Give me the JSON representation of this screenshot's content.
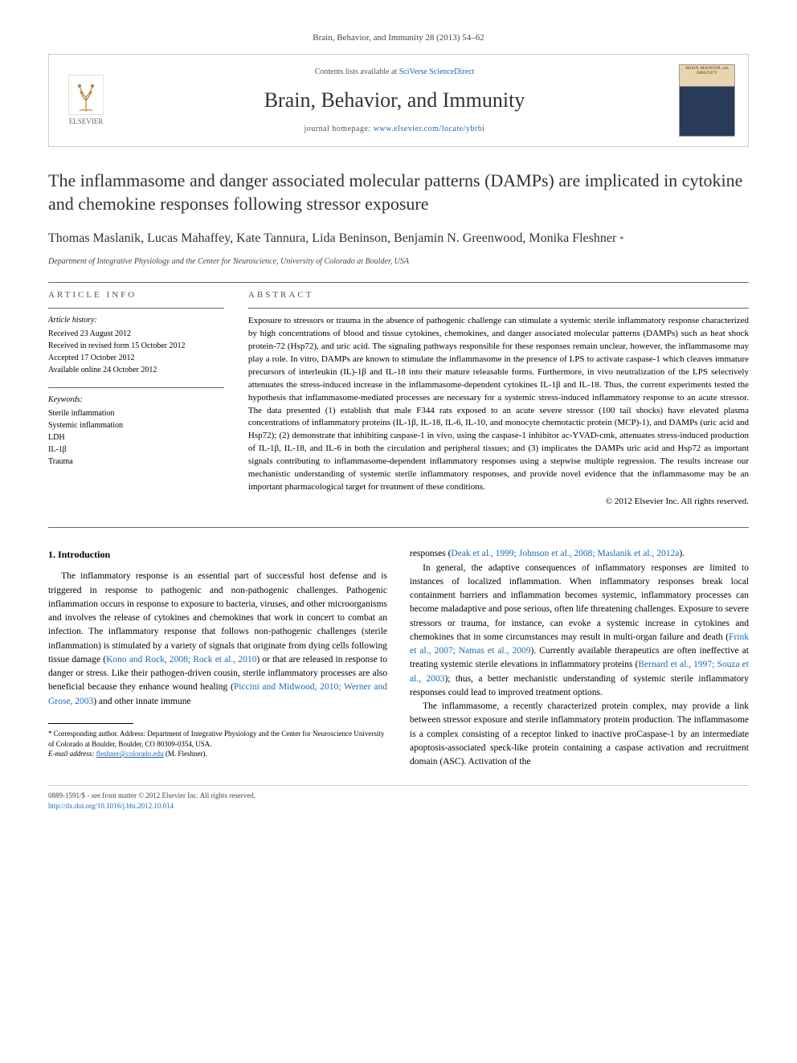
{
  "journal_ref": "Brain, Behavior, and Immunity 28 (2013) 54–62",
  "header": {
    "publisher": "ELSEVIER",
    "contents_prefix": "Contents lists available at ",
    "contents_link": "SciVerse ScienceDirect",
    "journal_name": "Brain, Behavior, and Immunity",
    "homepage_prefix": "journal homepage: ",
    "homepage_url": "www.elsevier.com/locate/ybrbi",
    "cover_title": "BRAIN, BEHAVIOR, and IMMUNITY"
  },
  "article": {
    "title": "The inflammasome and danger associated molecular patterns (DAMPs) are implicated in cytokine and chemokine responses following stressor exposure",
    "authors": "Thomas Maslanik, Lucas Mahaffey, Kate Tannura, Lida Beninson, Benjamin N. Greenwood, Monika Fleshner",
    "corr_marker": "*",
    "affiliation": "Department of Integrative Physiology and the Center for Neuroscience, University of Colorado at Boulder, USA"
  },
  "info": {
    "heading": "ARTICLE INFO",
    "history_title": "Article history:",
    "history": {
      "received": "Received 23 August 2012",
      "revised": "Received in revised form 15 October 2012",
      "accepted": "Accepted 17 October 2012",
      "online": "Available online 24 October 2012"
    },
    "keywords_title": "Keywords:",
    "keywords": [
      "Sterile inflammation",
      "Systemic inflammation",
      "LDH",
      "IL-1β",
      "Trauma"
    ]
  },
  "abstract": {
    "heading": "ABSTRACT",
    "text": "Exposure to stressors or trauma in the absence of pathogenic challenge can stimulate a systemic sterile inflammatory response characterized by high concentrations of blood and tissue cytokines, chemokines, and danger associated molecular patterns (DAMPs) such as heat shock protein-72 (Hsp72), and uric acid. The signaling pathways responsible for these responses remain unclear, however, the inflammasome may play a role. In vitro, DAMPs are known to stimulate the inflammasome in the presence of LPS to activate caspase-1 which cleaves immature precursors of interleukin (IL)-1β and IL-18 into their mature releasable forms. Furthermore, in vivo neutralization of the LPS selectively attenuates the stress-induced increase in the inflammasome-dependent cytokines IL-1β and IL-18. Thus, the current experiments tested the hypothesis that inflammasome-mediated processes are necessary for a systemic stress-induced inflammatory response to an acute stressor. The data presented (1) establish that male F344 rats exposed to an acute severe stressor (100 tail shocks) have elevated plasma concentrations of inflammatory proteins (IL-1β, IL-18, IL-6, IL-10, and monocyte chemotactic protein (MCP)-1), and DAMPs (uric acid and Hsp72); (2) demonstrate that inhibiting caspase-1 in vivo, using the caspase-1 inhibitor ac-YVAD-cmk, attenuates stress-induced production of IL-1β, IL-18, and IL-6 in both the circulation and peripheral tissues; and (3) implicates the DAMPs uric acid and Hsp72 as important signals contributing to inflammasome-dependent inflammatory responses using a stepwise multiple regression. The results increase our mechanistic understanding of systemic sterile inflammatory responses, and provide novel evidence that the inflammasome may be an important pharmacological target for treatment of these conditions.",
    "copyright": "© 2012 Elsevier Inc. All rights reserved."
  },
  "body": {
    "section_heading": "1. Introduction",
    "left_html": "The inflammatory response is an essential part of successful host defense and is triggered in response to pathogenic and non-pathogenic challenges. Pathogenic inflammation occurs in response to exposure to bacteria, viruses, and other microorganisms and involves the release of cytokines and chemokines that work in concert to combat an infection. The inflammatory response that follows non-pathogenic challenges (sterile inflammation) is stimulated by a variety of signals that originate from dying cells following tissue damage (<span class=\"cite\">Kono and Rock, 2008; Rock et al., 2010</span>) or that are released in response to danger or stress. Like their pathogen-driven cousin, sterile inflammatory processes are also beneficial because they enhance wound healing (<span class=\"cite\">Piccini and Midwood, 2010; Werner and Grose, 2003</span>) and other innate immune",
    "right_p1_html": "responses (<span class=\"cite\">Deak et al., 1999; Johnson et al., 2008; Maslanik et al., 2012a</span>).",
    "right_p2_html": "In general, the adaptive consequences of inflammatory responses are limited to instances of localized inflammation. When inflammatory responses break local containment barriers and inflammation becomes systemic, inflammatory processes can become maladaptive and pose serious, often life threatening challenges. Exposure to severe stressors or trauma, for instance, can evoke a systemic increase in cytokines and chemokines that in some circumstances may result in multi-organ failure and death (<span class=\"cite\">Frink et al., 2007; Namas et al., 2009</span>). Currently available therapeutics are often ineffective at treating systemic sterile elevations in inflammatory proteins (<span class=\"cite\">Bernard et al., 1997; Souza et al., 2003</span>); thus, a better mechanistic understanding of systemic sterile inflammatory responses could lead to improved treatment options.",
    "right_p3_html": "The inflammasome, a recently characterized protein complex, may provide a link between stressor exposure and sterile inflammatory protein production. The inflammasome is a complex consisting of a receptor linked to inactive proCaspase-1 by an intermediate apoptosis-associated speck-like protein containing a caspase activation and recruitment domain (ASC). Activation of the"
  },
  "footnote": {
    "corr": "* Corresponding author. Address: Department of Integrative Physiology and the Center for Neuroscience University of Colorado at Boulder, Boulder, CO 80309-0354, USA.",
    "email_label": "E-mail address:",
    "email": "fleshner@colorado.edu",
    "email_name": "(M. Fleshner)."
  },
  "footer": {
    "issn": "0889-1591/$ - see front matter © 2012 Elsevier Inc. All rights reserved.",
    "doi": "http://dx.doi.org/10.1016/j.bbi.2012.10.014"
  },
  "colors": {
    "link": "#1a6bb3",
    "text": "#000000",
    "muted": "#555555"
  }
}
